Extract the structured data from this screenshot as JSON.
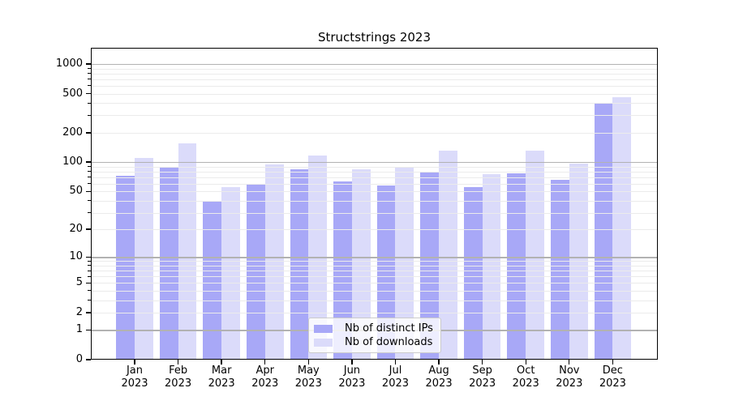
{
  "chart_data": {
    "type": "bar",
    "title": "Structstrings 2023",
    "xlabel": "",
    "ylabel": "",
    "scale": "log1p",
    "categories": [
      "Jan",
      "Feb",
      "Mar",
      "Apr",
      "May",
      "Jun",
      "Jul",
      "Aug",
      "Sep",
      "Oct",
      "Nov",
      "Dec"
    ],
    "category_year": "2023",
    "series": [
      {
        "name": "Nb of distinct IPs",
        "color": "#a8a8f7",
        "values": [
          73,
          90,
          40,
          59,
          84,
          63,
          58,
          78,
          55,
          77,
          66,
          405
        ]
      },
      {
        "name": "Nb of downloads",
        "color": "#dbdbfa",
        "values": [
          111,
          155,
          55,
          95,
          116,
          85,
          87,
          130,
          75,
          130,
          96,
          460
        ]
      }
    ],
    "yticks": [
      1000,
      500,
      200,
      100,
      50,
      20,
      10,
      5,
      2,
      1,
      0
    ],
    "ylim": [
      0,
      1450
    ],
    "grid": {
      "major_values": [
        1,
        10,
        100,
        1000
      ],
      "minor_values": [
        2,
        3,
        4,
        5,
        6,
        7,
        8,
        9,
        20,
        30,
        40,
        50,
        60,
        70,
        80,
        90,
        200,
        300,
        400,
        500,
        600,
        700,
        800,
        900
      ],
      "major_color": "#b2b2b2",
      "minor_color": "#ebebeb"
    },
    "legend": {
      "position": "lower center",
      "entries": [
        "Nb of distinct IPs",
        "Nb of downloads"
      ]
    },
    "colors": {
      "axis": "#000000",
      "background": "#ffffff",
      "distinct_ips": "#a8a8f7",
      "downloads": "#dbdbfa"
    }
  }
}
